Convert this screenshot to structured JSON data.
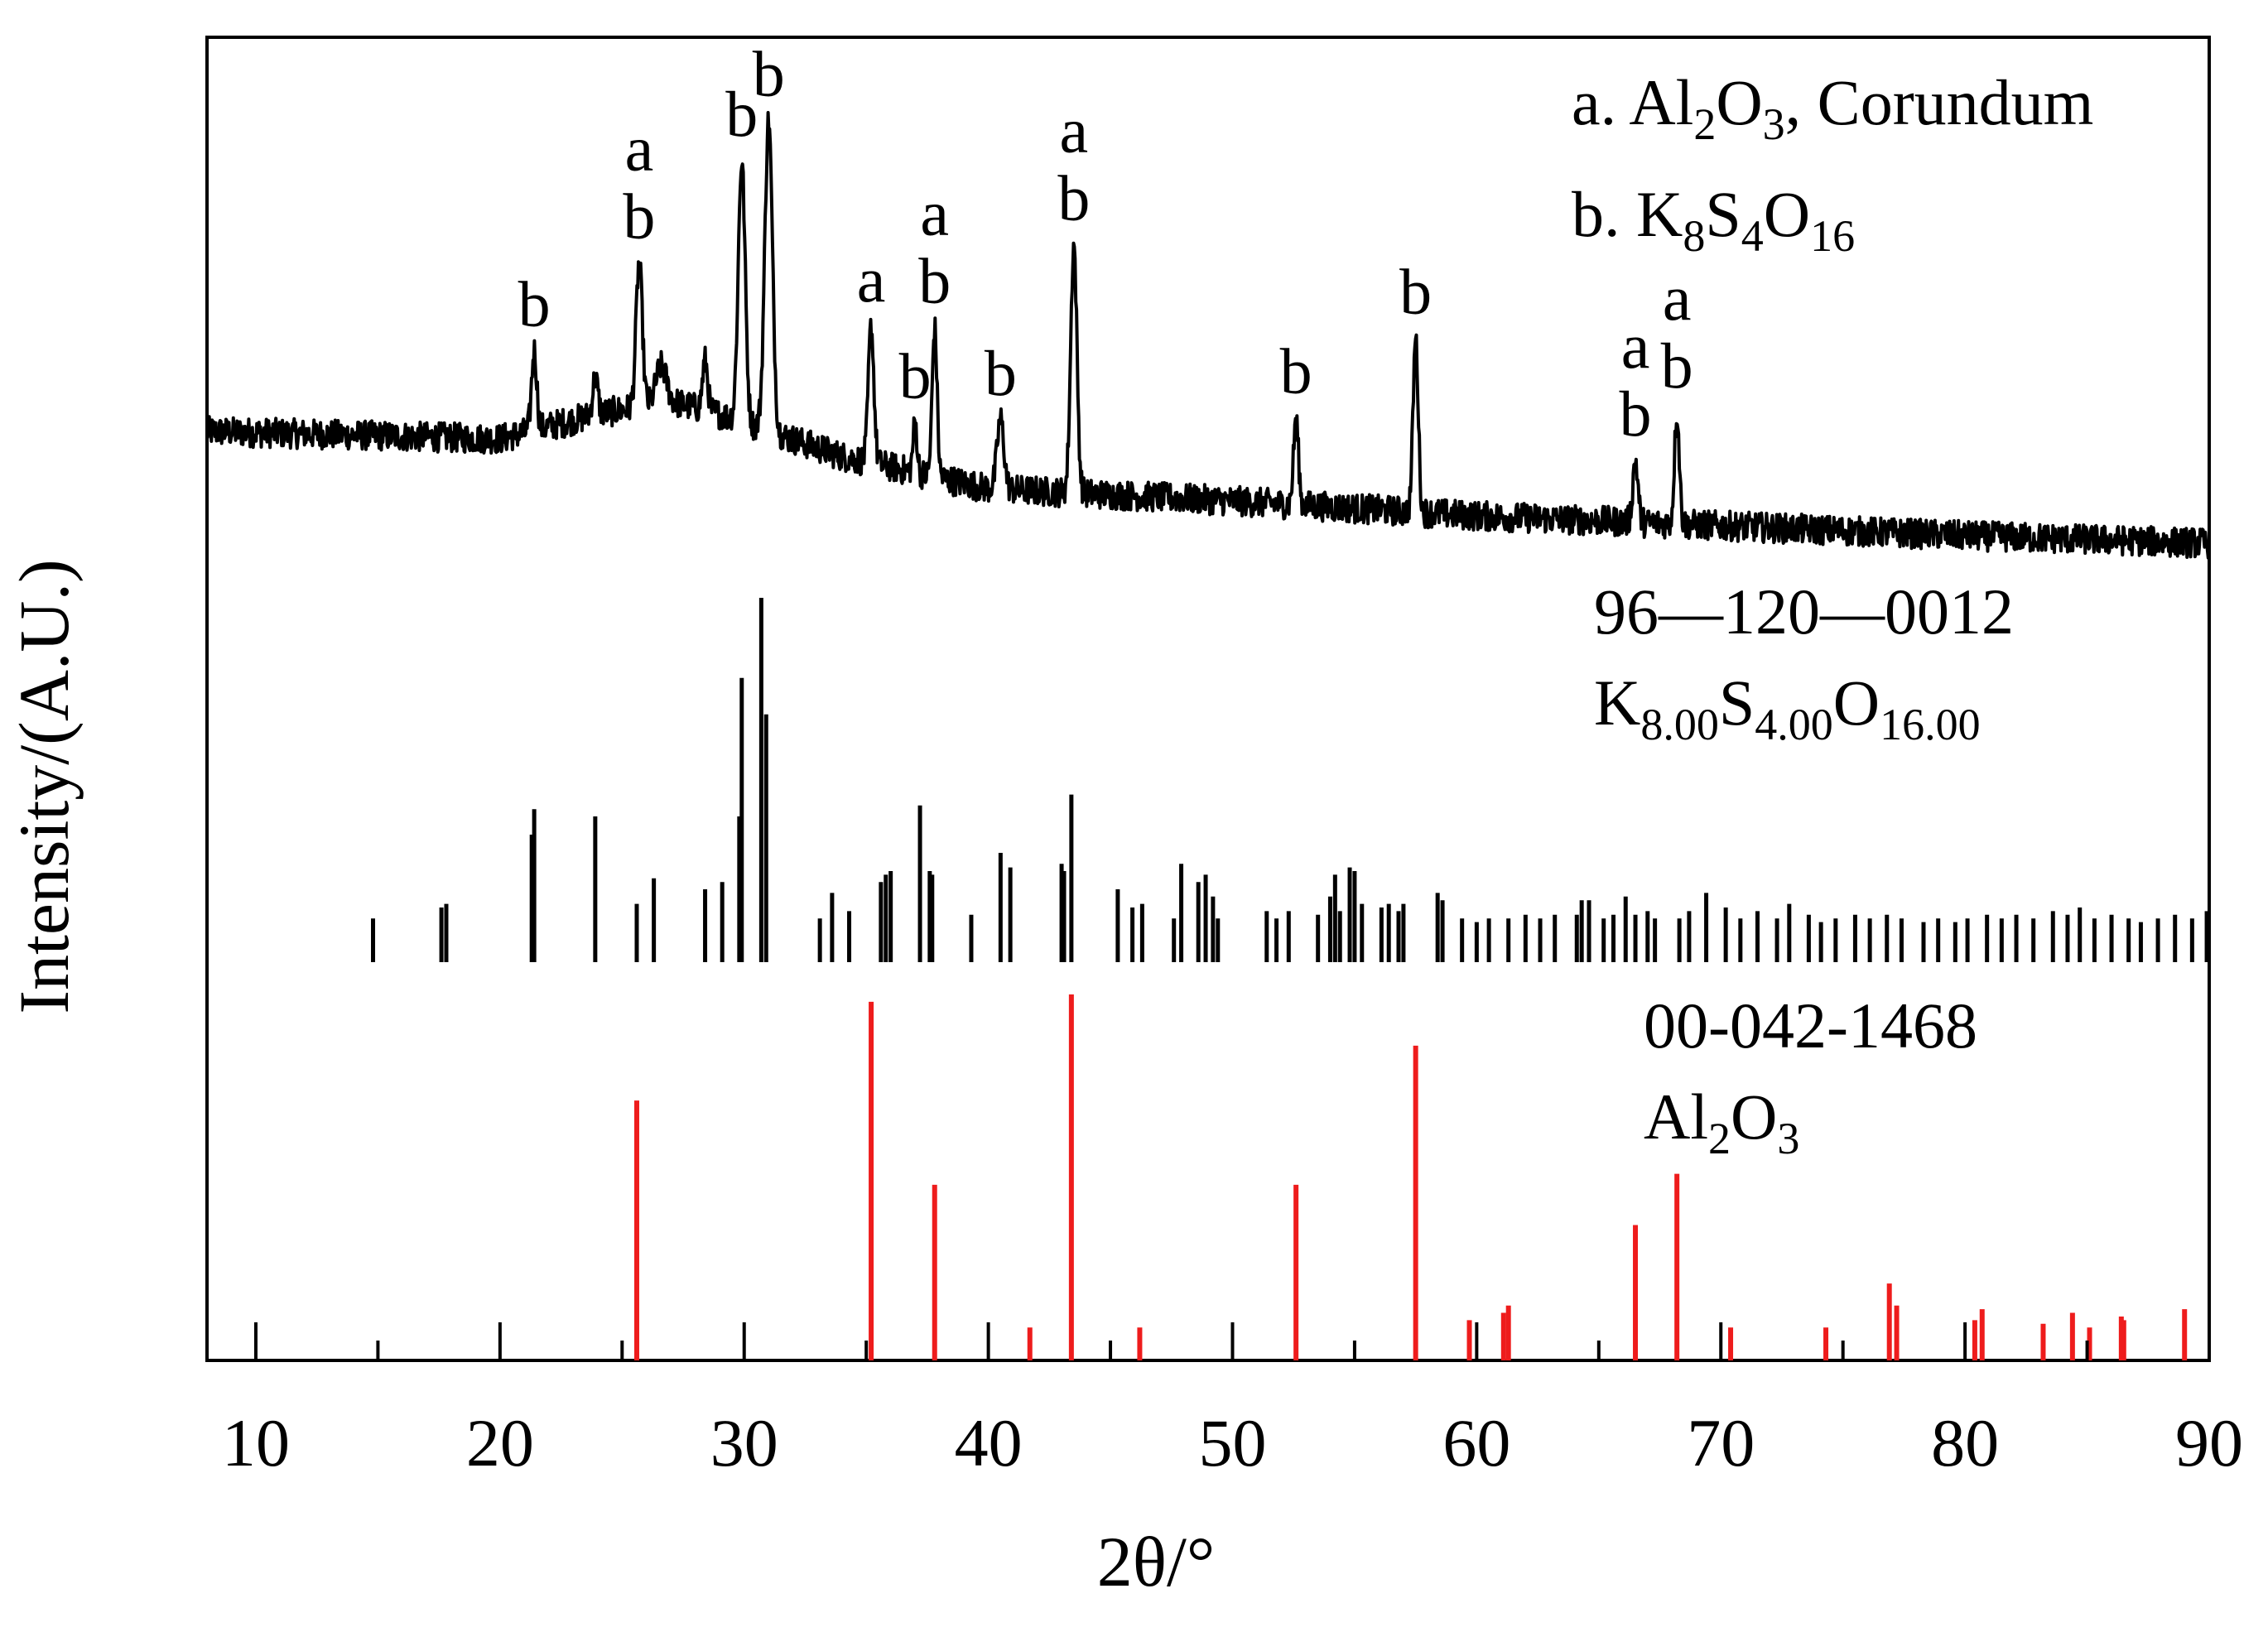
{
  "chart_data": {
    "type": "line",
    "xlabel": "2θ/°",
    "ylabel": "Intensity/(A.U.)",
    "xlim": [
      8,
      90
    ],
    "x_ticks": [
      "10",
      "20",
      "30",
      "40",
      "50",
      "60",
      "70",
      "80",
      "90"
    ],
    "colors": {
      "measured": "#000000",
      "ref_k8s4o16": "#000000",
      "ref_al2o3": "#ee1c1c"
    },
    "legend": {
      "a": {
        "prefix": "a. Al",
        "s1": "2",
        "m1": "O",
        "s2": "3",
        "suffix": ", Corundum"
      },
      "b": {
        "prefix": "b. K",
        "s1": "8",
        "m1": "S",
        "s2": "4",
        "m2": "O",
        "s3": "16"
      }
    },
    "reference_k8s4o16": {
      "code": "96—120—0012",
      "formula": {
        "e1": "K",
        "s1": "8.00",
        "e2": "S",
        "s2": "4.00",
        "e3": "O",
        "s3": "16.00"
      },
      "peaks": [
        [
          14.8,
          12
        ],
        [
          17.6,
          15
        ],
        [
          17.8,
          16
        ],
        [
          21.3,
          35
        ],
        [
          21.4,
          42
        ],
        [
          23.9,
          40
        ],
        [
          25.6,
          16
        ],
        [
          26.3,
          23
        ],
        [
          28.4,
          20
        ],
        [
          29.1,
          22
        ],
        [
          29.8,
          40
        ],
        [
          29.9,
          78
        ],
        [
          30.7,
          100
        ],
        [
          30.9,
          68
        ],
        [
          33.1,
          12
        ],
        [
          33.6,
          19
        ],
        [
          34.3,
          14
        ],
        [
          35.6,
          22
        ],
        [
          35.8,
          24
        ],
        [
          36.0,
          25
        ],
        [
          37.2,
          43
        ],
        [
          37.6,
          25
        ],
        [
          37.7,
          24
        ],
        [
          39.3,
          13
        ],
        [
          40.5,
          30
        ],
        [
          40.9,
          26
        ],
        [
          43.0,
          27
        ],
        [
          43.1,
          25
        ],
        [
          43.4,
          46
        ],
        [
          45.3,
          20
        ],
        [
          45.9,
          15
        ],
        [
          46.3,
          16
        ],
        [
          47.6,
          12
        ],
        [
          47.9,
          27
        ],
        [
          48.6,
          22
        ],
        [
          48.9,
          24
        ],
        [
          49.2,
          18
        ],
        [
          49.4,
          12
        ],
        [
          51.4,
          14
        ],
        [
          51.8,
          12
        ],
        [
          52.3,
          14
        ],
        [
          53.5,
          13
        ],
        [
          54.0,
          18
        ],
        [
          54.2,
          24
        ],
        [
          54.4,
          14
        ],
        [
          54.8,
          26
        ],
        [
          55.0,
          25
        ],
        [
          55.3,
          16
        ],
        [
          56.1,
          15
        ],
        [
          56.4,
          16
        ],
        [
          56.8,
          14
        ],
        [
          57.0,
          16
        ],
        [
          58.4,
          19
        ],
        [
          58.6,
          17
        ],
        [
          59.4,
          12
        ],
        [
          60.0,
          11
        ],
        [
          60.5,
          12
        ],
        [
          61.3,
          12
        ],
        [
          62.0,
          13
        ],
        [
          62.6,
          12
        ],
        [
          63.2,
          13
        ],
        [
          64.1,
          13
        ],
        [
          64.3,
          17
        ],
        [
          64.6,
          17
        ],
        [
          65.2,
          12
        ],
        [
          65.6,
          13
        ],
        [
          66.1,
          18
        ],
        [
          66.5,
          13
        ],
        [
          67.0,
          14
        ],
        [
          67.3,
          12
        ],
        [
          68.3,
          12
        ],
        [
          68.7,
          14
        ],
        [
          69.4,
          19
        ],
        [
          70.2,
          15
        ],
        [
          70.8,
          12
        ],
        [
          71.5,
          14
        ],
        [
          72.3,
          12
        ],
        [
          72.8,
          16
        ],
        [
          73.6,
          13
        ],
        [
          74.1,
          11
        ],
        [
          74.7,
          12
        ],
        [
          75.5,
          13
        ],
        [
          76.1,
          12
        ],
        [
          76.8,
          13
        ],
        [
          77.4,
          12
        ],
        [
          78.3,
          11
        ],
        [
          78.9,
          12
        ],
        [
          79.6,
          11
        ],
        [
          80.1,
          12
        ],
        [
          80.9,
          13
        ],
        [
          81.5,
          12
        ],
        [
          82.1,
          13
        ],
        [
          82.8,
          12
        ],
        [
          83.6,
          14
        ],
        [
          84.2,
          13
        ],
        [
          84.7,
          15
        ],
        [
          85.3,
          12
        ],
        [
          86.0,
          13
        ],
        [
          86.7,
          12
        ],
        [
          87.2,
          11
        ],
        [
          87.9,
          12
        ],
        [
          88.6,
          13
        ],
        [
          89.3,
          12
        ],
        [
          89.9,
          14
        ]
      ]
    },
    "reference_al2o3": {
      "code": "00-042-1468",
      "formula": {
        "e1": "Al",
        "s1": "2",
        "e2": "O",
        "s2": "3"
      },
      "peaks": [
        [
          25.6,
          71
        ],
        [
          35.2,
          98
        ],
        [
          37.8,
          48
        ],
        [
          41.7,
          9
        ],
        [
          43.4,
          100
        ],
        [
          46.2,
          9
        ],
        [
          52.6,
          48
        ],
        [
          57.5,
          86
        ],
        [
          59.7,
          11
        ],
        [
          61.1,
          13
        ],
        [
          61.3,
          15
        ],
        [
          66.5,
          37
        ],
        [
          68.2,
          51
        ],
        [
          70.4,
          9
        ],
        [
          74.3,
          9
        ],
        [
          76.9,
          21
        ],
        [
          77.2,
          15
        ],
        [
          80.4,
          11
        ],
        [
          80.7,
          14
        ],
        [
          83.2,
          10
        ],
        [
          84.4,
          13
        ],
        [
          85.1,
          9
        ],
        [
          86.4,
          12
        ],
        [
          86.5,
          11
        ],
        [
          88.99,
          14
        ]
      ]
    },
    "measured": {
      "baseline": [
        [
          8,
          0.48
        ],
        [
          20,
          0.45
        ],
        [
          24,
          0.55
        ],
        [
          27,
          0.6
        ],
        [
          29,
          0.55
        ],
        [
          34,
          0.38
        ],
        [
          40,
          0.25
        ],
        [
          50,
          0.2
        ],
        [
          60,
          0.14
        ],
        [
          70,
          0.1
        ],
        [
          80,
          0.06
        ],
        [
          90,
          0.03
        ]
      ],
      "peaks": [
        [
          21.4,
          0.32,
          0.15,
          "b"
        ],
        [
          23.9,
          0.15,
          0.15,
          ""
        ],
        [
          25.7,
          0.58,
          0.18,
          "ab"
        ],
        [
          26.6,
          0.15,
          0.3,
          ""
        ],
        [
          28.4,
          0.2,
          0.15,
          ""
        ],
        [
          29.9,
          1.05,
          0.2,
          "b"
        ],
        [
          31.0,
          1.25,
          0.22,
          "b"
        ],
        [
          35.2,
          0.55,
          0.16,
          "a"
        ],
        [
          37.0,
          0.2,
          0.12,
          "b"
        ],
        [
          37.8,
          0.6,
          0.14,
          "ab"
        ],
        [
          40.5,
          0.28,
          0.2,
          "b"
        ],
        [
          43.5,
          1.0,
          0.18,
          "ab"
        ],
        [
          52.6,
          0.35,
          0.14,
          "b"
        ],
        [
          57.5,
          0.7,
          0.15,
          "b"
        ],
        [
          66.5,
          0.25,
          0.15,
          "ab"
        ],
        [
          68.2,
          0.45,
          0.14,
          "ab"
        ]
      ]
    }
  }
}
